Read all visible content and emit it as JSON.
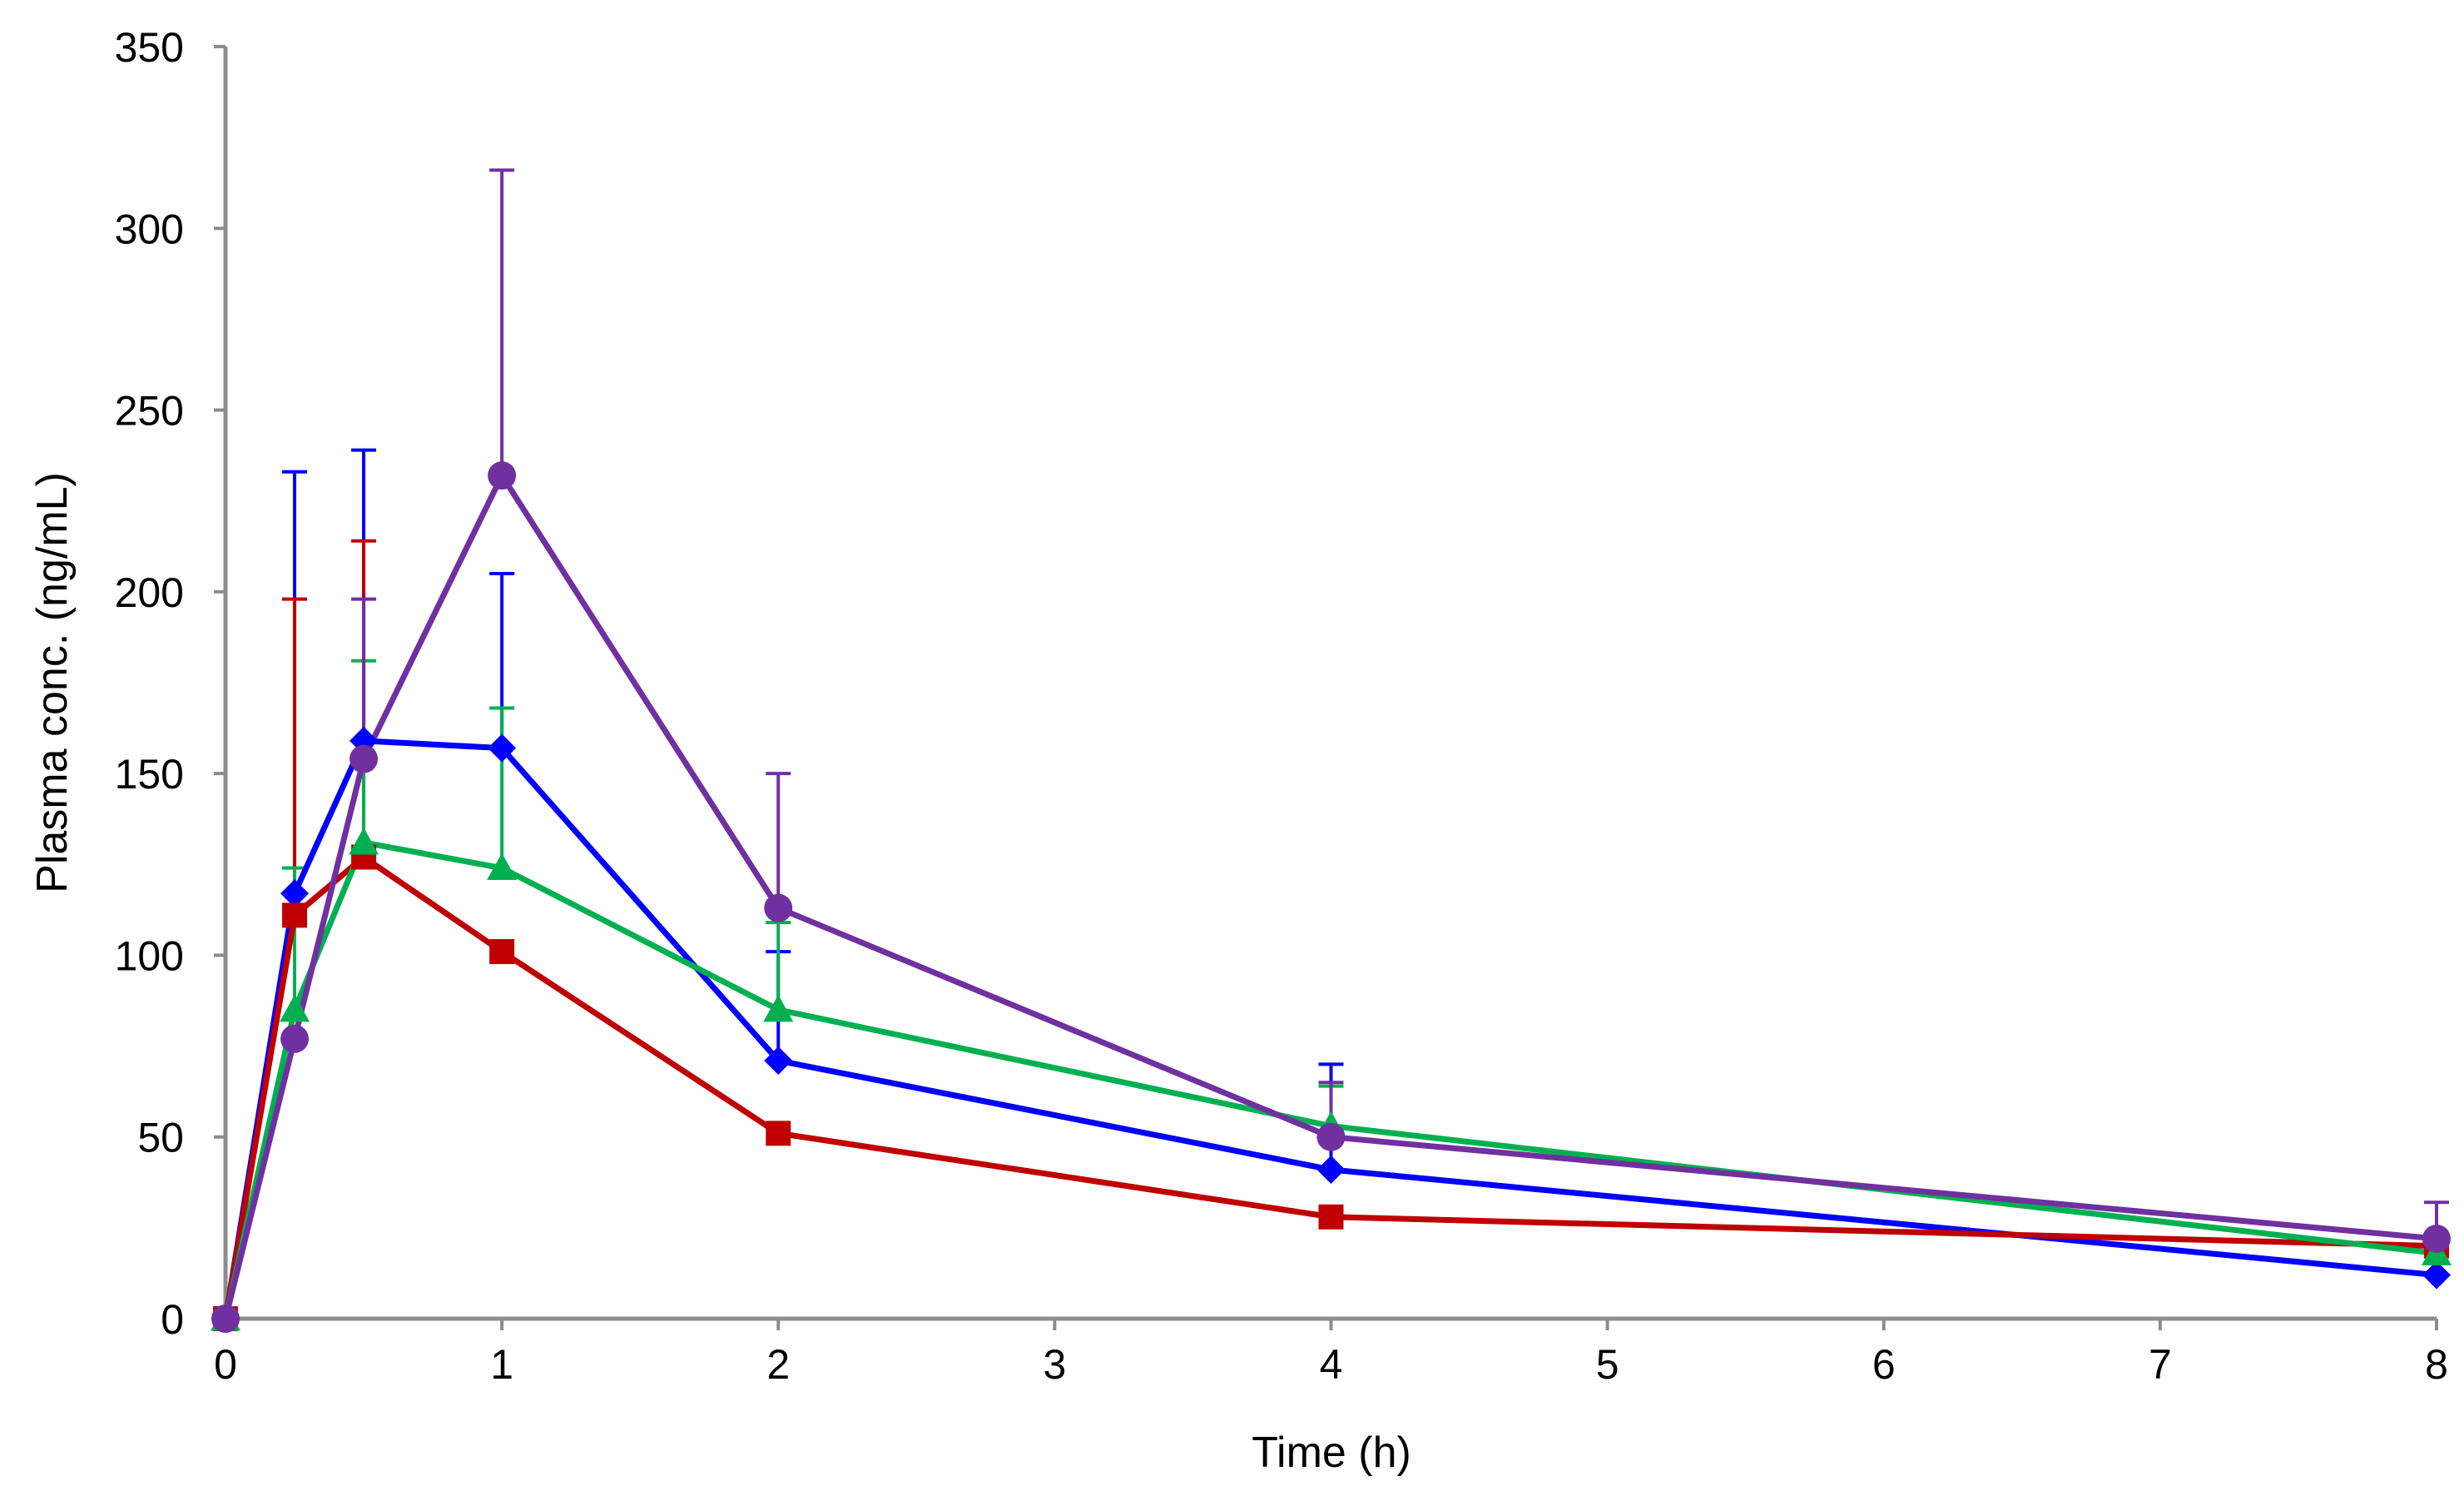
{
  "chart_data": {
    "type": "line",
    "title": "",
    "xlabel": "Time (h)",
    "ylabel": "Plasma conc. (ng/mL)",
    "xlim": [
      0,
      8
    ],
    "ylim": [
      0,
      350
    ],
    "xticks": [
      0,
      1,
      2,
      3,
      4,
      5,
      6,
      7,
      8
    ],
    "yticks": [
      0,
      50,
      100,
      150,
      200,
      250,
      300,
      350
    ],
    "grid": false,
    "legend": "none",
    "x": [
      0,
      0.25,
      0.5,
      1,
      2,
      4,
      8
    ],
    "series": [
      {
        "name": "blue",
        "color": "#0000ff",
        "marker": "diamond",
        "values": [
          0,
          117,
          159,
          157,
          71,
          41,
          12
        ],
        "error_upper": [
          0,
          233,
          239,
          205,
          101,
          70,
          12
        ]
      },
      {
        "name": "red",
        "color": "#c00000",
        "marker": "square",
        "values": [
          0,
          111,
          127,
          101,
          51,
          28,
          20
        ],
        "error_upper": [
          0,
          198,
          214,
          101,
          51,
          28,
          20
        ]
      },
      {
        "name": "green",
        "color": "#00b050",
        "marker": "triangle",
        "values": [
          0,
          85,
          131,
          124,
          85,
          53,
          18
        ],
        "error_upper": [
          0,
          124,
          181,
          168,
          109,
          64,
          22
        ]
      },
      {
        "name": "purple",
        "color": "#7030a0",
        "marker": "circle",
        "values": [
          0,
          77,
          154,
          232,
          113,
          50,
          22
        ],
        "error_upper": [
          0,
          77,
          198,
          316,
          150,
          65,
          32
        ]
      }
    ]
  }
}
